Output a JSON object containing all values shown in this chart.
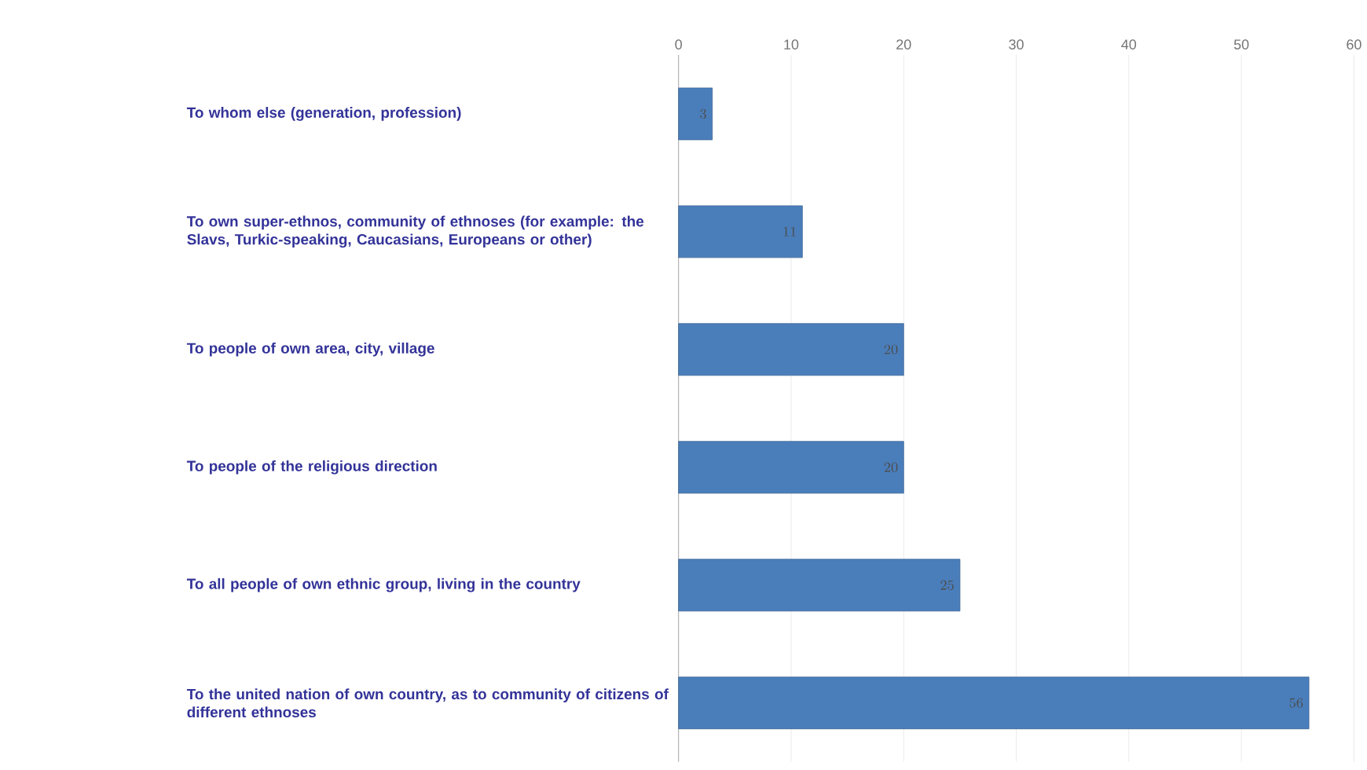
{
  "chart_data": {
    "type": "bar",
    "orientation": "horizontal",
    "categories": [
      "To whom else (generation, profession)",
      "To own super-ethnos, community of ethnoses (for example: the Slavs, Turkic-speaking, Caucasians, Europeans or other)",
      "To people of own area, city, village",
      "To people of the religious direction",
      "To all people of own ethnic group, living in the country",
      "To the united nation of own country, as to community of citizens of different ethnoses"
    ],
    "values": [
      3,
      11,
      20,
      20,
      25,
      56
    ],
    "color": "#4a7ebb",
    "xlim": [
      0,
      60
    ],
    "xticks": [
      0,
      10,
      20,
      30,
      40,
      50,
      60
    ],
    "grid": "x",
    "data_labels": true
  }
}
